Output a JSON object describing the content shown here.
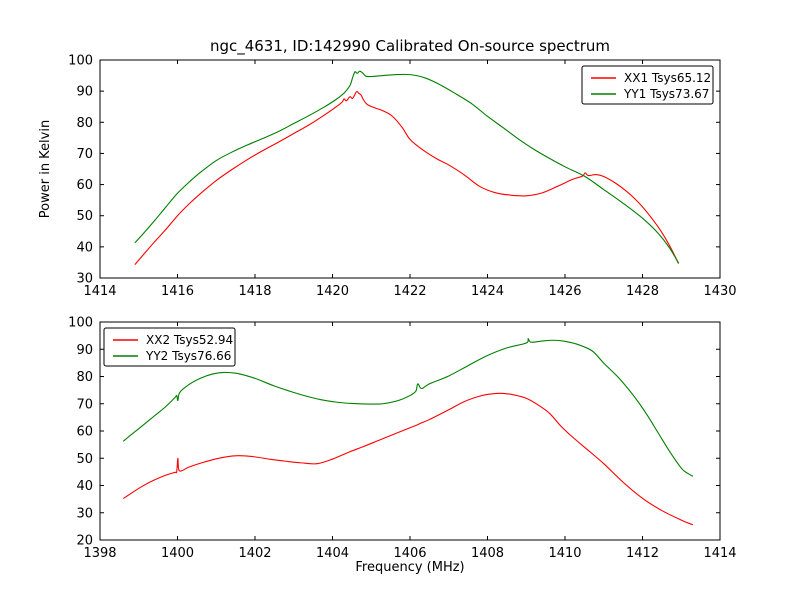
{
  "figure": {
    "title": "ngc_4631, ID:142990 Calibrated On-source spectrum",
    "background": "#ffffff",
    "axis_color": "#000000"
  },
  "chart_data": [
    {
      "type": "line",
      "title": "",
      "xlabel": "",
      "ylabel": "Power in Kelvin",
      "xlim": [
        1414,
        1430
      ],
      "ylim": [
        30,
        100
      ],
      "xticks": [
        1414,
        1416,
        1418,
        1420,
        1422,
        1424,
        1426,
        1428,
        1430
      ],
      "yticks": [
        30,
        40,
        50,
        60,
        70,
        80,
        90,
        100
      ],
      "grid": false,
      "legend": {
        "position": "top-right",
        "entries": [
          {
            "label": "XX1 Tsys65.12",
            "color": "#ff0000"
          },
          {
            "label": "YY1 Tsys73.67",
            "color": "#008000"
          }
        ]
      },
      "series": [
        {
          "name": "XX1 Tsys65.12",
          "color": "#ff0000",
          "points": [
            [
              1414.9,
              34.3
            ],
            [
              1415.1,
              37.2
            ],
            [
              1415.4,
              41.5
            ],
            [
              1415.7,
              45.6
            ],
            [
              1416.0,
              50.0
            ],
            [
              1416.3,
              53.8
            ],
            [
              1416.6,
              57.2
            ],
            [
              1417.0,
              61.3
            ],
            [
              1417.4,
              64.8
            ],
            [
              1417.8,
              68.0
            ],
            [
              1418.2,
              70.9
            ],
            [
              1418.6,
              73.6
            ],
            [
              1419.0,
              76.4
            ],
            [
              1419.4,
              79.2
            ],
            [
              1419.8,
              82.4
            ],
            [
              1420.1,
              85.0
            ],
            [
              1420.25,
              86.5
            ],
            [
              1420.3,
              87.5
            ],
            [
              1420.36,
              86.9
            ],
            [
              1420.45,
              88.2
            ],
            [
              1420.52,
              87.7
            ],
            [
              1420.62,
              89.8
            ],
            [
              1420.68,
              89.3
            ],
            [
              1420.74,
              88.7
            ],
            [
              1420.8,
              87.2
            ],
            [
              1420.9,
              85.7
            ],
            [
              1421.1,
              84.6
            ],
            [
              1421.3,
              83.7
            ],
            [
              1421.55,
              81.9
            ],
            [
              1421.8,
              78.3
            ],
            [
              1422.0,
              74.5
            ],
            [
              1422.3,
              71.4
            ],
            [
              1422.7,
              68.2
            ],
            [
              1423.0,
              66.3
            ],
            [
              1423.4,
              63.1
            ],
            [
              1423.8,
              59.4
            ],
            [
              1424.2,
              57.4
            ],
            [
              1424.6,
              56.6
            ],
            [
              1425.0,
              56.4
            ],
            [
              1425.4,
              57.3
            ],
            [
              1425.8,
              59.4
            ],
            [
              1426.2,
              61.7
            ],
            [
              1426.45,
              62.7
            ],
            [
              1426.52,
              63.8
            ],
            [
              1426.6,
              62.9
            ],
            [
              1426.8,
              63.2
            ],
            [
              1427.0,
              62.6
            ],
            [
              1427.3,
              60.5
            ],
            [
              1427.6,
              57.7
            ],
            [
              1427.9,
              54.2
            ],
            [
              1428.2,
              49.8
            ],
            [
              1428.5,
              44.6
            ],
            [
              1428.75,
              39.2
            ],
            [
              1428.93,
              34.6
            ]
          ]
        },
        {
          "name": "YY1 Tsys73.67",
          "color": "#008000",
          "points": [
            [
              1414.9,
              41.3
            ],
            [
              1415.1,
              44.0
            ],
            [
              1415.4,
              48.3
            ],
            [
              1415.7,
              52.8
            ],
            [
              1416.0,
              57.2
            ],
            [
              1416.3,
              60.8
            ],
            [
              1416.6,
              64.0
            ],
            [
              1417.0,
              67.7
            ],
            [
              1417.4,
              70.4
            ],
            [
              1417.8,
              72.7
            ],
            [
              1418.2,
              74.8
            ],
            [
              1418.6,
              77.0
            ],
            [
              1419.0,
              79.6
            ],
            [
              1419.4,
              82.2
            ],
            [
              1419.8,
              85.0
            ],
            [
              1420.1,
              87.4
            ],
            [
              1420.3,
              89.4
            ],
            [
              1420.45,
              91.8
            ],
            [
              1420.52,
              94.4
            ],
            [
              1420.58,
              96.2
            ],
            [
              1420.64,
              95.7
            ],
            [
              1420.7,
              96.4
            ],
            [
              1420.78,
              95.8
            ],
            [
              1420.86,
              94.8
            ],
            [
              1421.0,
              94.7
            ],
            [
              1421.3,
              95.0
            ],
            [
              1421.6,
              95.3
            ],
            [
              1422.0,
              95.3
            ],
            [
              1422.4,
              94.2
            ],
            [
              1422.8,
              91.9
            ],
            [
              1423.2,
              89.0
            ],
            [
              1423.6,
              85.9
            ],
            [
              1424.0,
              81.9
            ],
            [
              1424.4,
              78.3
            ],
            [
              1424.8,
              74.6
            ],
            [
              1425.2,
              71.3
            ],
            [
              1425.6,
              68.4
            ],
            [
              1426.0,
              65.7
            ],
            [
              1426.5,
              62.7
            ],
            [
              1427.0,
              58.4
            ],
            [
              1427.5,
              54.0
            ],
            [
              1428.0,
              49.2
            ],
            [
              1428.4,
              44.4
            ],
            [
              1428.7,
              39.6
            ],
            [
              1428.93,
              34.8
            ]
          ]
        }
      ]
    },
    {
      "type": "line",
      "title": "",
      "xlabel": "Frequency (MHz)",
      "ylabel": "",
      "xlim": [
        1398,
        1414
      ],
      "ylim": [
        20,
        100
      ],
      "xticks": [
        1398,
        1400,
        1402,
        1404,
        1406,
        1408,
        1410,
        1412,
        1414
      ],
      "yticks": [
        20,
        30,
        40,
        50,
        60,
        70,
        80,
        90,
        100
      ],
      "grid": false,
      "legend": {
        "position": "top-left",
        "entries": [
          {
            "label": "XX2 Tsys52.94",
            "color": "#ff0000"
          },
          {
            "label": "YY2 Tsys76.66",
            "color": "#008000"
          }
        ]
      },
      "series": [
        {
          "name": "XX2 Tsys52.94",
          "color": "#ff0000",
          "points": [
            [
              1398.6,
              35.2
            ],
            [
              1398.8,
              37.1
            ],
            [
              1399.1,
              39.8
            ],
            [
              1399.4,
              42.0
            ],
            [
              1399.7,
              43.8
            ],
            [
              1399.93,
              44.8
            ],
            [
              1399.98,
              45.1
            ],
            [
              1400.01,
              50.0
            ],
            [
              1400.05,
              45.4
            ],
            [
              1400.3,
              46.8
            ],
            [
              1400.6,
              48.2
            ],
            [
              1401.0,
              49.8
            ],
            [
              1401.4,
              50.8
            ],
            [
              1401.7,
              50.9
            ],
            [
              1402.0,
              50.5
            ],
            [
              1402.4,
              49.6
            ],
            [
              1402.8,
              48.9
            ],
            [
              1403.2,
              48.3
            ],
            [
              1403.6,
              48.0
            ],
            [
              1404.0,
              49.7
            ],
            [
              1404.45,
              52.4
            ],
            [
              1404.8,
              54.3
            ],
            [
              1405.2,
              56.6
            ],
            [
              1405.6,
              58.9
            ],
            [
              1406.0,
              61.2
            ],
            [
              1406.18,
              62.2
            ],
            [
              1406.28,
              62.9
            ],
            [
              1406.5,
              64.2
            ],
            [
              1407.0,
              67.8
            ],
            [
              1407.4,
              70.8
            ],
            [
              1407.8,
              72.8
            ],
            [
              1408.1,
              73.6
            ],
            [
              1408.4,
              73.8
            ],
            [
              1408.7,
              73.2
            ],
            [
              1409.0,
              72.0
            ],
            [
              1409.3,
              69.6
            ],
            [
              1409.6,
              66.5
            ],
            [
              1409.9,
              61.7
            ],
            [
              1410.2,
              57.7
            ],
            [
              1410.6,
              52.9
            ],
            [
              1411.0,
              48.0
            ],
            [
              1411.5,
              41.2
            ],
            [
              1412.0,
              35.3
            ],
            [
              1412.5,
              30.8
            ],
            [
              1413.0,
              27.3
            ],
            [
              1413.15,
              26.4
            ],
            [
              1413.3,
              25.6
            ]
          ]
        },
        {
          "name": "YY2 Tsys76.66",
          "color": "#008000",
          "points": [
            [
              1398.6,
              56.2
            ],
            [
              1398.8,
              58.6
            ],
            [
              1399.1,
              62.0
            ],
            [
              1399.4,
              65.5
            ],
            [
              1399.7,
              69.0
            ],
            [
              1399.93,
              72.2
            ],
            [
              1399.98,
              73.0
            ],
            [
              1400.01,
              71.2
            ],
            [
              1400.06,
              74.2
            ],
            [
              1400.3,
              77.1
            ],
            [
              1400.6,
              79.4
            ],
            [
              1400.9,
              80.9
            ],
            [
              1401.2,
              81.5
            ],
            [
              1401.5,
              81.2
            ],
            [
              1401.8,
              80.2
            ],
            [
              1402.1,
              78.8
            ],
            [
              1402.5,
              76.5
            ],
            [
              1402.9,
              74.6
            ],
            [
              1403.3,
              72.9
            ],
            [
              1403.7,
              71.5
            ],
            [
              1404.1,
              70.6
            ],
            [
              1404.5,
              70.1
            ],
            [
              1404.9,
              69.9
            ],
            [
              1405.3,
              70.0
            ],
            [
              1405.7,
              71.2
            ],
            [
              1406.0,
              73.0
            ],
            [
              1406.15,
              74.6
            ],
            [
              1406.2,
              77.3
            ],
            [
              1406.3,
              75.6
            ],
            [
              1406.5,
              77.3
            ],
            [
              1407.0,
              80.2
            ],
            [
              1407.5,
              84.0
            ],
            [
              1408.0,
              87.7
            ],
            [
              1408.5,
              90.5
            ],
            [
              1409.0,
              92.3
            ],
            [
              1409.05,
              93.9
            ],
            [
              1409.12,
              92.6
            ],
            [
              1409.4,
              93.0
            ],
            [
              1409.7,
              93.3
            ],
            [
              1410.0,
              92.9
            ],
            [
              1410.3,
              91.9
            ],
            [
              1410.7,
              89.4
            ],
            [
              1411.0,
              84.9
            ],
            [
              1411.4,
              79.3
            ],
            [
              1411.8,
              72.4
            ],
            [
              1412.1,
              66.3
            ],
            [
              1412.4,
              59.4
            ],
            [
              1412.7,
              52.5
            ],
            [
              1413.0,
              46.4
            ],
            [
              1413.15,
              44.6
            ],
            [
              1413.3,
              43.4
            ]
          ]
        }
      ]
    }
  ]
}
